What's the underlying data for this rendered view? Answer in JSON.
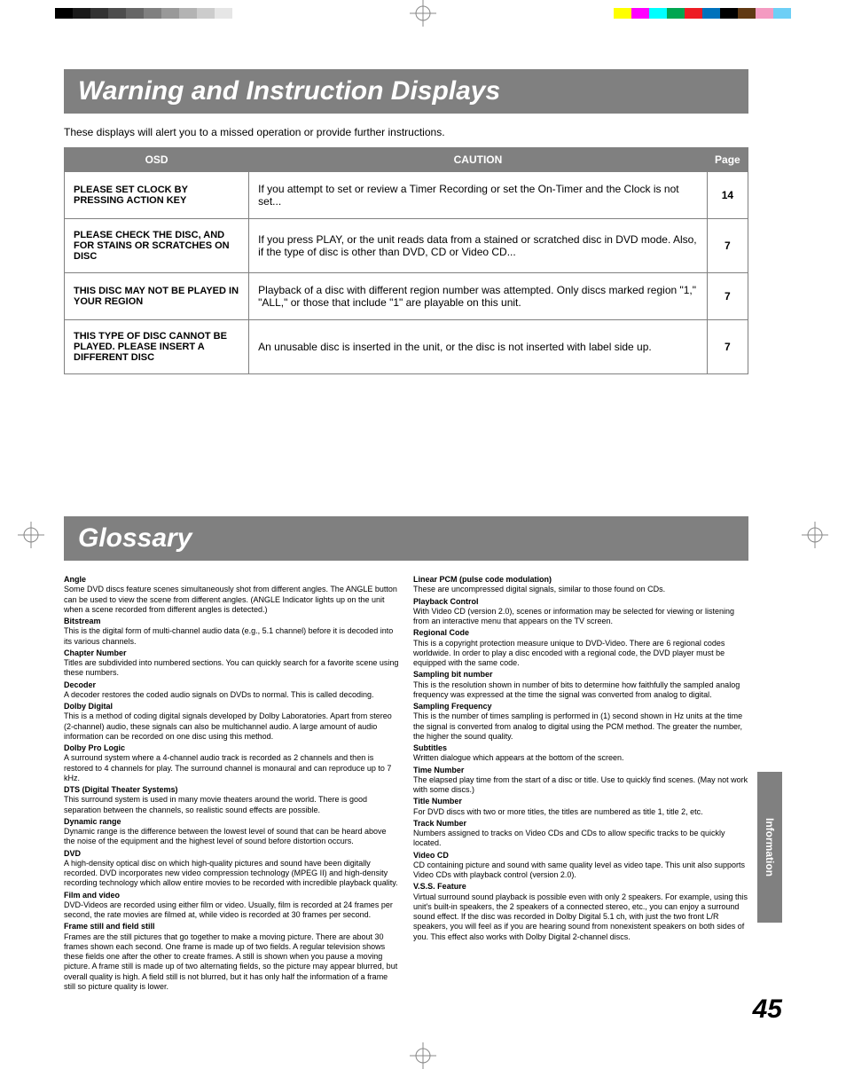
{
  "registration_marks": true,
  "color_swatches_left": [
    "#000000",
    "#1a1a1a",
    "#333333",
    "#4d4d4d",
    "#666666",
    "#808080",
    "#999999",
    "#b3b3b3",
    "#cccccc",
    "#e6e6e6"
  ],
  "color_swatches_right": [
    "#ffff00",
    "#ff00ff",
    "#00ffff",
    "#00a651",
    "#ed1c24",
    "#0072bc",
    "#000000",
    "#603913",
    "#f49ac1",
    "#6dcff6"
  ],
  "section1": {
    "heading": "Warning and Instruction Displays",
    "intro": "These displays will alert you to a missed operation or provide further instructions.",
    "table": {
      "col_widths": [
        "27%",
        "67%",
        "6%"
      ],
      "headers": [
        "OSD",
        "CAUTION",
        "Page"
      ],
      "rows": [
        {
          "osd": "PLEASE SET CLOCK BY PRESSING ACTION KEY",
          "caution": "If you attempt to set or review a Timer Recording or set the On-Timer and the Clock is not set...",
          "page": "14"
        },
        {
          "osd": "PLEASE CHECK THE DISC, AND FOR STAINS OR SCRATCHES ON DISC",
          "caution": "If you press PLAY, or the unit reads data from a stained or scratched disc in DVD mode. Also, if the type of disc is other than DVD, CD or Video CD...",
          "page": "7"
        },
        {
          "osd": "THIS DISC MAY NOT BE PLAYED IN YOUR REGION",
          "caution": "Playback of a disc with different region number was attempted. Only discs marked region \"1,\" \"ALL,\" or those that include \"1\" are playable on this unit.",
          "page": "7"
        },
        {
          "osd": "THIS TYPE OF DISC CANNOT BE PLAYED.  PLEASE INSERT A DIFFERENT DISC",
          "caution": "An unusable disc is inserted in the unit, or the disc is not inserted with label side up.",
          "page": "7"
        }
      ]
    }
  },
  "section2": {
    "heading": "Glossary",
    "left_column": [
      {
        "term": "Angle",
        "def": "Some DVD discs feature scenes simultaneously shot from different angles. The ANGLE button can be used to view the scene from different angles. (ANGLE Indicator lights up on the unit when a scene recorded from different angles is detected.)"
      },
      {
        "term": "Bitstream",
        "def": "This is the digital form of multi-channel audio data (e.g., 5.1 channel) before it is decoded into its various channels."
      },
      {
        "term": "Chapter Number",
        "def": "Titles are subdivided into numbered sections. You can quickly search for a favorite scene using these numbers."
      },
      {
        "term": "Decoder",
        "def": "A decoder restores the coded audio signals on DVDs to normal. This is called decoding."
      },
      {
        "term": "Dolby Digital",
        "def": "This is a method of coding digital signals developed by Dolby Laboratories. Apart from stereo (2-channel) audio, these signals can also be multichannel audio. A large amount of audio information can be recorded on one disc using this method."
      },
      {
        "term": "Dolby Pro Logic",
        "def": "A surround system where a 4-channel audio track is recorded as 2 channels and then is restored to 4 channels for play. The surround channel is monaural and can reproduce up to 7 kHz."
      },
      {
        "term": "DTS (Digital Theater Systems)",
        "def": "This surround system is used in many movie theaters around the world. There is good separation between the channels, so realistic sound effects are possible."
      },
      {
        "term": "Dynamic range",
        "def": "Dynamic range is the difference between the lowest level of sound that can be heard above the noise of the equipment and the highest level of sound before distortion occurs."
      },
      {
        "term": "DVD",
        "def": "A high-density optical disc on which high-quality pictures and sound have been digitally recorded. DVD incorporates new video compression technology (MPEG II) and high-density recording technology which allow entire movies to be recorded with incredible playback quality."
      },
      {
        "term": "Film and video",
        "def": "DVD-Videos are recorded using either film or video. Usually, film is recorded at 24 frames per second, the rate movies are filmed at, while video is recorded at 30 frames per second."
      },
      {
        "term": "Frame still and field still",
        "def": "Frames are the still pictures that go together to make a moving picture. There are about 30 frames shown each second. One frame is made up of two fields. A regular television shows these fields one after the other to create frames.\nA still is shown when you pause a moving picture. A frame still is made up of two alternating fields, so the picture may appear blurred, but overall quality is high. A field still is not blurred, but it has only half the information of a frame still so picture quality is lower."
      }
    ],
    "right_column": [
      {
        "term": "Linear PCM (pulse code modulation)",
        "def": "These are uncompressed digital signals, similar to those found on CDs."
      },
      {
        "term": "Playback Control",
        "def": "With Video CD (version 2.0), scenes or information may be selected for viewing or listening from an interactive menu that appears on the TV screen."
      },
      {
        "term": "Regional Code",
        "def": "This is a copyright protection measure unique to DVD-Video. There are 6 regional codes worldwide. In order to play a disc encoded with a regional code, the DVD player must be equipped with the same code."
      },
      {
        "term": "Sampling bit number",
        "def": "This is the resolution shown in number of bits to determine how faithfully the sampled analog frequency was expressed at the time the signal was converted from analog to digital."
      },
      {
        "term": "Sampling Frequency",
        "def": "This is the number of times sampling is performed in (1) second shown in Hz units at the time the signal is converted from analog to digital using the PCM method. The greater the number, the higher the sound quality."
      },
      {
        "term": "Subtitles",
        "def": "Written dialogue which appears at the bottom of the screen."
      },
      {
        "term": "Time Number",
        "def": "The elapsed play time from the start of a disc or title. Use to quickly find scenes. (May not work with some discs.)"
      },
      {
        "term": "Title Number",
        "def": "For DVD discs with two or more titles, the titles are numbered as title 1, title 2, etc."
      },
      {
        "term": "Track Number",
        "def": "Numbers assigned to tracks on Video CDs and CDs to allow specific tracks to be quickly located."
      },
      {
        "term": "Video CD",
        "def": "CD containing picture and sound with same quality level as video tape. This unit also supports Video CDs with playback control (version 2.0)."
      },
      {
        "term": "V.S.S. Feature",
        "def": "Virtual surround sound playback is possible even with only 2 speakers. For example, using this unit's built-in speakers, the 2 speakers of a connected stereo, etc., you can enjoy a surround sound effect. If the disc was recorded in Dolby Digital 5.1 ch, with just the two front L/R speakers, you will feel as if you are hearing sound from nonexistent speakers on both sides of you. This effect also works with Dolby Digital 2-channel discs."
      }
    ]
  },
  "side_tab": "Information",
  "page_number": "45"
}
